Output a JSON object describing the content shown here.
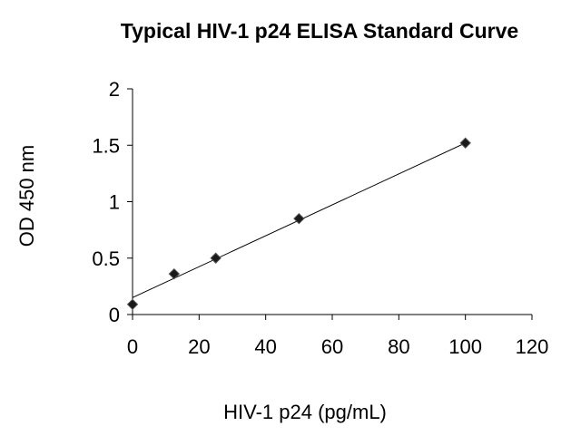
{
  "chart_data": {
    "type": "scatter",
    "title": "Typical HIV-1 p24 ELISA Standard Curve",
    "xlabel": "HIV-1 p24 (pg/mL)",
    "ylabel": "OD 450 nm",
    "xlim": [
      0,
      120
    ],
    "ylim": [
      0,
      2
    ],
    "xticks": [
      0,
      20,
      40,
      60,
      80,
      100,
      120
    ],
    "yticks": [
      0,
      0.5,
      1,
      1.5,
      2
    ],
    "grid": false,
    "legend": "none",
    "marker": "diamond",
    "series": [
      {
        "x": [
          0,
          12.5,
          25,
          50,
          100
        ],
        "y": [
          0.09,
          0.36,
          0.5,
          0.85,
          1.52
        ]
      }
    ],
    "trendline": {
      "type": "linear",
      "x": [
        0,
        100
      ],
      "y": [
        0.15,
        1.52
      ]
    },
    "colors": {
      "marker": "#1a1a1a",
      "line": "#000000",
      "axis": "#000000"
    }
  }
}
